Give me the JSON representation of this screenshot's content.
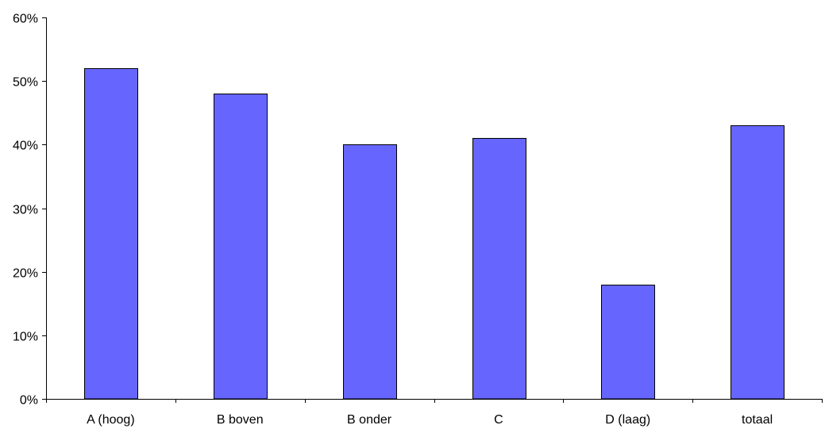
{
  "chart_data": {
    "type": "bar",
    "title": "",
    "xlabel": "",
    "ylabel": "",
    "categories": [
      "A (hoog)",
      "B boven",
      "B onder",
      "C",
      "D (laag)",
      "totaal"
    ],
    "values": [
      0.52,
      0.48,
      0.4,
      0.41,
      0.18,
      0.43
    ],
    "ylim": [
      0,
      0.6
    ],
    "yticks": [
      0,
      0.1,
      0.2,
      0.3,
      0.4,
      0.5,
      0.6
    ],
    "ytick_labels": [
      "0%",
      "10%",
      "20%",
      "30%",
      "40%",
      "50%",
      "60%"
    ],
    "grid": false,
    "legend": "none",
    "bar_color": "#6666FF"
  }
}
